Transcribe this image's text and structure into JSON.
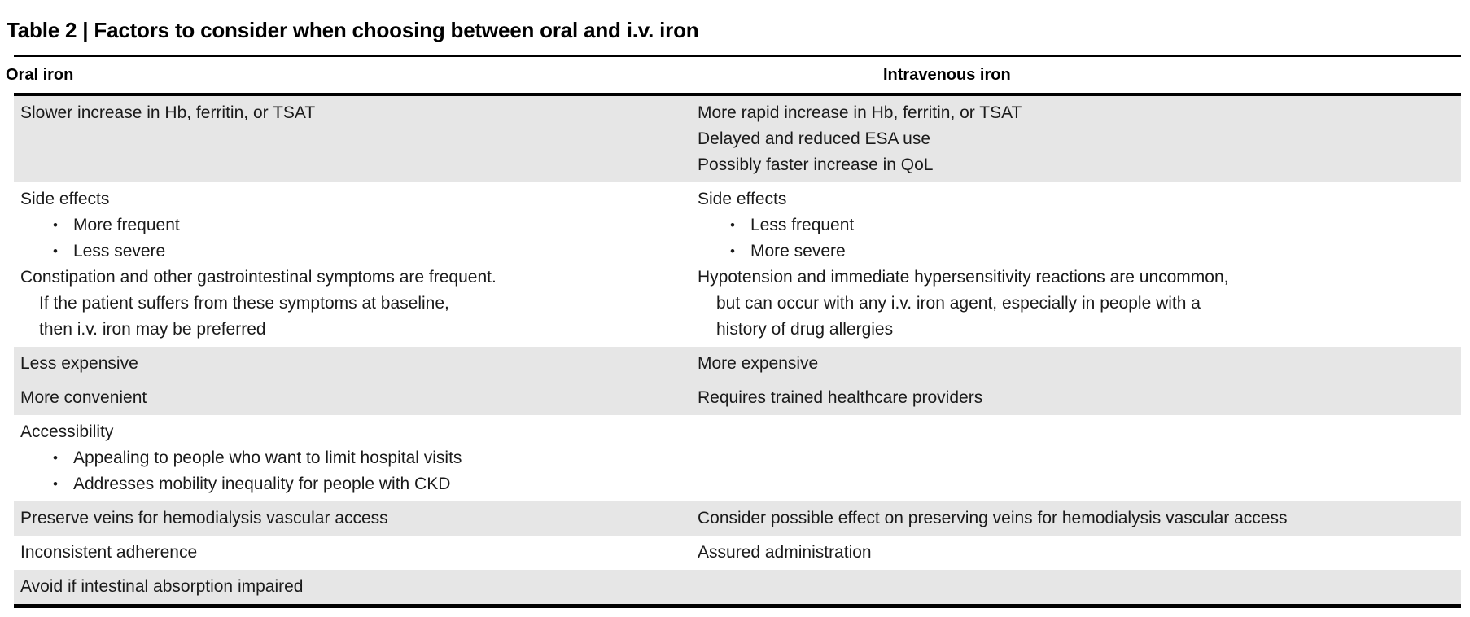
{
  "colors": {
    "row_shade": "#e6e6e6",
    "rule": "#000000",
    "text": "#1a1a1a",
    "background": "#ffffff"
  },
  "table": {
    "title": "Table 2 | Factors to consider when choosing between oral and i.v. iron",
    "bullet_glyph": "•",
    "columns": [
      {
        "label": "Oral iron"
      },
      {
        "label": "Intravenous iron"
      }
    ],
    "rows": [
      {
        "shaded": true,
        "oral": [
          {
            "style": "plain",
            "text": "Slower increase in Hb, ferritin, or TSAT"
          }
        ],
        "iv": [
          {
            "style": "plain",
            "text": "More rapid increase in Hb, ferritin, or TSAT"
          },
          {
            "style": "plain",
            "text": "Delayed and reduced ESA use"
          },
          {
            "style": "plain",
            "text": "Possibly faster increase in QoL"
          }
        ]
      },
      {
        "shaded": false,
        "oral": [
          {
            "style": "plain",
            "text": "Side effects"
          },
          {
            "style": "bullet",
            "text": "More frequent"
          },
          {
            "style": "bullet",
            "text": "Less severe"
          },
          {
            "style": "plain",
            "text": "Constipation and other gastrointestinal symptoms are frequent."
          },
          {
            "style": "indent",
            "text": "If the patient suffers from these symptoms at baseline,"
          },
          {
            "style": "indent",
            "text": "then i.v. iron may be preferred"
          }
        ],
        "iv": [
          {
            "style": "plain",
            "text": "Side effects"
          },
          {
            "style": "bullet",
            "text": "Less frequent"
          },
          {
            "style": "bullet",
            "text": "More severe"
          },
          {
            "style": "plain",
            "text": "Hypotension and immediate hypersensitivity reactions are uncommon,"
          },
          {
            "style": "indent",
            "text": "but can occur with any i.v. iron agent, especially in people with a"
          },
          {
            "style": "indent",
            "text": "history of drug allergies"
          }
        ]
      },
      {
        "shaded": true,
        "oral": [
          {
            "style": "plain",
            "text": "Less expensive"
          }
        ],
        "iv": [
          {
            "style": "plain",
            "text": "More expensive"
          }
        ]
      },
      {
        "shaded": true,
        "oral": [
          {
            "style": "plain",
            "text": "More convenient"
          }
        ],
        "iv": [
          {
            "style": "plain",
            "text": "Requires trained healthcare providers"
          }
        ]
      },
      {
        "shaded": false,
        "oral": [
          {
            "style": "plain",
            "text": "Accessibility"
          },
          {
            "style": "bullet",
            "text": "Appealing to people who want to limit hospital visits"
          },
          {
            "style": "bullet",
            "text": "Addresses mobility inequality for people with CKD"
          }
        ],
        "iv": []
      },
      {
        "shaded": true,
        "oral": [
          {
            "style": "plain",
            "text": "Preserve veins for hemodialysis vascular access"
          }
        ],
        "iv": [
          {
            "style": "plain",
            "text": "Consider possible effect on preserving veins for hemodialysis vascular access"
          }
        ]
      },
      {
        "shaded": false,
        "oral": [
          {
            "style": "plain",
            "text": "Inconsistent adherence"
          }
        ],
        "iv": [
          {
            "style": "plain",
            "text": "Assured administration"
          }
        ]
      },
      {
        "shaded": true,
        "oral": [
          {
            "style": "plain",
            "text": "Avoid if intestinal absorption impaired"
          }
        ],
        "iv": []
      }
    ]
  }
}
